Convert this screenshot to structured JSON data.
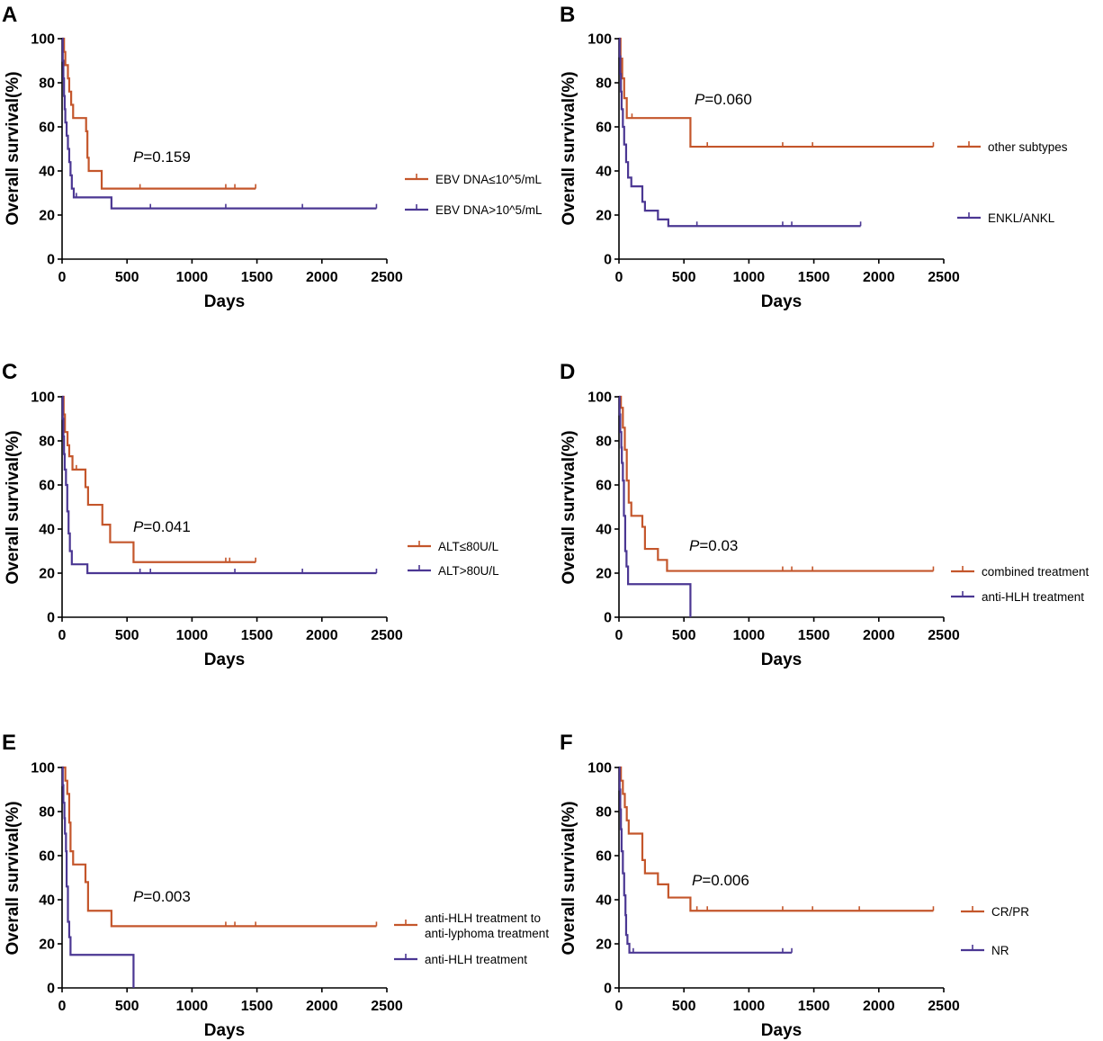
{
  "chart_data": [
    {
      "panel": "A",
      "type": "line",
      "xlabel": "Days",
      "ylabel": "Overall survival(%)",
      "xlim": [
        0,
        2500
      ],
      "ylim": [
        0,
        100
      ],
      "xticks": [
        "0",
        "500",
        "1000",
        "1500",
        "2000",
        "2500"
      ],
      "yticks": [
        "0",
        "20",
        "40",
        "60",
        "80",
        "100"
      ],
      "p_label": "P",
      "p_value": "=0.159",
      "series": [
        {
          "name": "EBV DNA≤10^5/mL",
          "color": "#c4562b",
          "steps": [
            [
              0,
              100
            ],
            [
              15,
              94
            ],
            [
              25,
              88
            ],
            [
              45,
              82
            ],
            [
              55,
              76
            ],
            [
              70,
              70
            ],
            [
              85,
              64
            ],
            [
              185,
              58
            ],
            [
              195,
              46
            ],
            [
              205,
              40
            ],
            [
              305,
              32
            ],
            [
              1490,
              32
            ]
          ],
          "censors": [
            [
              600,
              32
            ],
            [
              1260,
              32
            ],
            [
              1330,
              32
            ],
            [
              1490,
              32
            ]
          ]
        },
        {
          "name": "EBV DNA>10^5/mL",
          "color": "#4b3793",
          "steps": [
            [
              0,
              100
            ],
            [
              5,
              90
            ],
            [
              10,
              82
            ],
            [
              15,
              74
            ],
            [
              20,
              68
            ],
            [
              25,
              62
            ],
            [
              35,
              56
            ],
            [
              45,
              50
            ],
            [
              55,
              44
            ],
            [
              65,
              38
            ],
            [
              75,
              32
            ],
            [
              90,
              28
            ],
            [
              380,
              23
            ],
            [
              2420,
              23
            ]
          ],
          "censors": [
            [
              110,
              28
            ],
            [
              680,
              23
            ],
            [
              1260,
              23
            ],
            [
              1850,
              23
            ],
            [
              2420,
              23
            ]
          ]
        }
      ]
    },
    {
      "panel": "B",
      "type": "line",
      "xlabel": "Days",
      "ylabel": "Overall survival(%)",
      "xlim": [
        0,
        2500
      ],
      "ylim": [
        0,
        100
      ],
      "xticks": [
        "0",
        "500",
        "1000",
        "1500",
        "2000",
        "2500"
      ],
      "yticks": [
        "0",
        "20",
        "40",
        "60",
        "80",
        "100"
      ],
      "p_label": "P",
      "p_value": "=0.060",
      "series": [
        {
          "name": "other subtypes",
          "color": "#c4562b",
          "steps": [
            [
              0,
              100
            ],
            [
              12,
              91
            ],
            [
              25,
              82
            ],
            [
              40,
              73
            ],
            [
              60,
              64
            ],
            [
              550,
              51
            ],
            [
              2420,
              51
            ]
          ],
          "censors": [
            [
              100,
              64
            ],
            [
              680,
              51
            ],
            [
              1260,
              51
            ],
            [
              1490,
              51
            ],
            [
              2420,
              51
            ]
          ]
        },
        {
          "name": "ENKL/ANKL",
          "color": "#4b3793",
          "steps": [
            [
              0,
              100
            ],
            [
              5,
              92
            ],
            [
              10,
              84
            ],
            [
              15,
              76
            ],
            [
              20,
              68
            ],
            [
              30,
              60
            ],
            [
              40,
              52
            ],
            [
              55,
              44
            ],
            [
              70,
              37
            ],
            [
              95,
              33
            ],
            [
              180,
              26
            ],
            [
              200,
              22
            ],
            [
              300,
              18
            ],
            [
              380,
              15
            ],
            [
              1860,
              15
            ]
          ],
          "censors": [
            [
              600,
              15
            ],
            [
              1260,
              15
            ],
            [
              1330,
              15
            ],
            [
              1860,
              15
            ]
          ]
        }
      ]
    },
    {
      "panel": "C",
      "type": "line",
      "xlabel": "Days",
      "ylabel": "Overall survival(%)",
      "xlim": [
        0,
        2500
      ],
      "ylim": [
        0,
        100
      ],
      "xticks": [
        "0",
        "500",
        "1000",
        "1500",
        "2000",
        "2500"
      ],
      "yticks": [
        "0",
        "20",
        "40",
        "60",
        "80",
        "100"
      ],
      "p_label": "P",
      "p_value": "=0.041",
      "series": [
        {
          "name": "ALT≤80U/L",
          "color": "#c4562b",
          "steps": [
            [
              0,
              100
            ],
            [
              12,
              92
            ],
            [
              22,
              84
            ],
            [
              42,
              78
            ],
            [
              55,
              73
            ],
            [
              80,
              67
            ],
            [
              180,
              59
            ],
            [
              200,
              51
            ],
            [
              310,
              42
            ],
            [
              370,
              34
            ],
            [
              550,
              25
            ],
            [
              1490,
              25
            ]
          ],
          "censors": [
            [
              110,
              67
            ],
            [
              1260,
              25
            ],
            [
              1290,
              25
            ],
            [
              1490,
              25
            ]
          ]
        },
        {
          "name": "ALT>80U/L",
          "color": "#4b3793",
          "steps": [
            [
              0,
              100
            ],
            [
              5,
              90
            ],
            [
              10,
              82
            ],
            [
              15,
              74
            ],
            [
              20,
              67
            ],
            [
              30,
              60
            ],
            [
              40,
              48
            ],
            [
              50,
              38
            ],
            [
              60,
              30
            ],
            [
              75,
              24
            ],
            [
              195,
              20
            ],
            [
              2420,
              20
            ]
          ],
          "censors": [
            [
              600,
              20
            ],
            [
              680,
              20
            ],
            [
              1330,
              20
            ],
            [
              1850,
              20
            ],
            [
              2420,
              20
            ]
          ]
        }
      ]
    },
    {
      "panel": "D",
      "type": "line",
      "xlabel": "Days",
      "ylabel": "Overall survival(%)",
      "xlim": [
        0,
        2500
      ],
      "ylim": [
        0,
        100
      ],
      "xticks": [
        "0",
        "500",
        "1000",
        "1500",
        "2000",
        "2500"
      ],
      "yticks": [
        "0",
        "20",
        "40",
        "60",
        "80",
        "100"
      ],
      "p_label": "P",
      "p_value": "=0.03",
      "series": [
        {
          "name": "combined treatment",
          "color": "#c4562b",
          "steps": [
            [
              0,
              100
            ],
            [
              15,
              95
            ],
            [
              30,
              86
            ],
            [
              45,
              76
            ],
            [
              60,
              62
            ],
            [
              75,
              52
            ],
            [
              95,
              46
            ],
            [
              180,
              41
            ],
            [
              200,
              31
            ],
            [
              300,
              26
            ],
            [
              370,
              21
            ],
            [
              2420,
              21
            ]
          ],
          "censors": [
            [
              1260,
              21
            ],
            [
              1330,
              21
            ],
            [
              1490,
              21
            ],
            [
              2420,
              21
            ]
          ]
        },
        {
          "name": "anti-HLH treatment",
          "color": "#4b3793",
          "steps": [
            [
              0,
              100
            ],
            [
              5,
              92
            ],
            [
              10,
              84
            ],
            [
              18,
              77
            ],
            [
              22,
              70
            ],
            [
              30,
              62
            ],
            [
              38,
              46
            ],
            [
              48,
              30
            ],
            [
              58,
              23
            ],
            [
              70,
              15
            ],
            [
              550,
              0
            ]
          ],
          "censors": []
        }
      ]
    },
    {
      "panel": "E",
      "type": "line",
      "xlabel": "Days",
      "ylabel": "Overall survival(%)",
      "xlim": [
        0,
        2500
      ],
      "ylim": [
        0,
        100
      ],
      "xticks": [
        "0",
        "500",
        "1000",
        "1500",
        "2000",
        "2500"
      ],
      "yticks": [
        "0",
        "20",
        "40",
        "60",
        "80",
        "100"
      ],
      "p_label": "P",
      "p_value": "=0.003",
      "series": [
        {
          "name_lines": [
            "anti-HLH treatment to",
            "anti-lyphoma treatment"
          ],
          "color": "#c4562b",
          "steps": [
            [
              0,
              100
            ],
            [
              25,
              94
            ],
            [
              40,
              88
            ],
            [
              55,
              75
            ],
            [
              65,
              62
            ],
            [
              85,
              56
            ],
            [
              180,
              48
            ],
            [
              200,
              35
            ],
            [
              380,
              28
            ],
            [
              2420,
              28
            ]
          ],
          "censors": [
            [
              1260,
              28
            ],
            [
              1330,
              28
            ],
            [
              1490,
              28
            ],
            [
              2420,
              28
            ]
          ]
        },
        {
          "name_lines": [
            "anti-HLH treatment"
          ],
          "color": "#4b3793",
          "steps": [
            [
              0,
              100
            ],
            [
              5,
              92
            ],
            [
              10,
              84
            ],
            [
              18,
              77
            ],
            [
              22,
              70
            ],
            [
              30,
              62
            ],
            [
              35,
              46
            ],
            [
              45,
              30
            ],
            [
              55,
              23
            ],
            [
              65,
              15
            ],
            [
              550,
              0
            ]
          ],
          "censors": []
        }
      ]
    },
    {
      "panel": "F",
      "type": "line",
      "xlabel": "Days",
      "ylabel": "Overall survival(%)",
      "xlim": [
        0,
        2500
      ],
      "ylim": [
        0,
        100
      ],
      "xticks": [
        "0",
        "500",
        "1000",
        "1500",
        "2000",
        "2500"
      ],
      "yticks": [
        "0",
        "20",
        "40",
        "60",
        "80",
        "100"
      ],
      "p_label": "P",
      "p_value": "=0.006",
      "series": [
        {
          "name": "CR/PR",
          "color": "#c4562b",
          "steps": [
            [
              0,
              100
            ],
            [
              15,
              94
            ],
            [
              30,
              88
            ],
            [
              45,
              82
            ],
            [
              60,
              76
            ],
            [
              75,
              70
            ],
            [
              180,
              58
            ],
            [
              200,
              52
            ],
            [
              300,
              47
            ],
            [
              380,
              41
            ],
            [
              550,
              35
            ],
            [
              2420,
              35
            ]
          ],
          "censors": [
            [
              600,
              35
            ],
            [
              680,
              35
            ],
            [
              1260,
              35
            ],
            [
              1490,
              35
            ],
            [
              1850,
              35
            ],
            [
              2420,
              35
            ]
          ]
        },
        {
          "name": "NR",
          "color": "#4b3793",
          "steps": [
            [
              0,
              100
            ],
            [
              5,
              90
            ],
            [
              10,
              81
            ],
            [
              15,
              72
            ],
            [
              20,
              62
            ],
            [
              30,
              52
            ],
            [
              40,
              42
            ],
            [
              50,
              33
            ],
            [
              55,
              24
            ],
            [
              65,
              20
            ],
            [
              80,
              16
            ],
            [
              1330,
              16
            ]
          ],
          "censors": [
            [
              110,
              16
            ],
            [
              1260,
              16
            ],
            [
              1330,
              16
            ]
          ]
        }
      ]
    }
  ]
}
